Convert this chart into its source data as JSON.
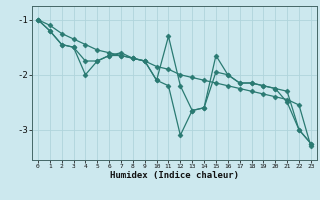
{
  "xlabel": "Humidex (Indice chaleur)",
  "bg_color": "#cce8ee",
  "line_color": "#2a7a72",
  "grid_color": "#b0d4dc",
  "xlim": [
    -0.5,
    23.5
  ],
  "ylim": [
    -3.55,
    -0.75
  ],
  "yticks": [
    -3,
    -2,
    -1
  ],
  "xticks": [
    0,
    1,
    2,
    3,
    4,
    5,
    6,
    7,
    8,
    9,
    10,
    11,
    12,
    13,
    14,
    15,
    16,
    17,
    18,
    19,
    20,
    21,
    22,
    23
  ],
  "series": [
    {
      "x": [
        0,
        1,
        2,
        3,
        4,
        5,
        6,
        7,
        8,
        9,
        10,
        11,
        12,
        13,
        14,
        15,
        16,
        17,
        18,
        19,
        20,
        21,
        22,
        23
      ],
      "y": [
        -1.0,
        -1.1,
        -1.25,
        -1.35,
        -1.45,
        -1.55,
        -1.6,
        -1.65,
        -1.7,
        -1.75,
        -1.85,
        -1.9,
        -2.0,
        -2.05,
        -2.1,
        -2.15,
        -2.2,
        -2.25,
        -2.3,
        -2.35,
        -2.4,
        -2.45,
        -2.55,
        -3.3
      ]
    },
    {
      "x": [
        0,
        1,
        2,
        3,
        4,
        5,
        6,
        7,
        8,
        9,
        10,
        11,
        12,
        13,
        14,
        15,
        16,
        17,
        18,
        19,
        20,
        21,
        22,
        23
      ],
      "y": [
        -1.0,
        -1.2,
        -1.45,
        -1.5,
        -2.0,
        -1.75,
        -1.65,
        -1.65,
        -1.7,
        -1.75,
        -2.1,
        -2.2,
        -3.1,
        -2.65,
        -2.6,
        -1.65,
        -2.0,
        -2.15,
        -2.15,
        -2.2,
        -2.25,
        -2.5,
        -3.0,
        -3.25
      ]
    },
    {
      "x": [
        0,
        1,
        2,
        3,
        4,
        5,
        6,
        7,
        8,
        9,
        10,
        11,
        12,
        13,
        14,
        15,
        16,
        17,
        18,
        19,
        20,
        21,
        22,
        23
      ],
      "y": [
        -1.0,
        -1.2,
        -1.45,
        -1.5,
        -1.75,
        -1.75,
        -1.65,
        -1.6,
        -1.7,
        -1.75,
        -2.1,
        -1.3,
        -2.2,
        -2.65,
        -2.6,
        -1.95,
        -2.0,
        -2.15,
        -2.15,
        -2.2,
        -2.25,
        -2.3,
        -3.0,
        -3.25
      ]
    }
  ],
  "marker": "D",
  "markersize": 2.5,
  "linewidth": 0.9
}
